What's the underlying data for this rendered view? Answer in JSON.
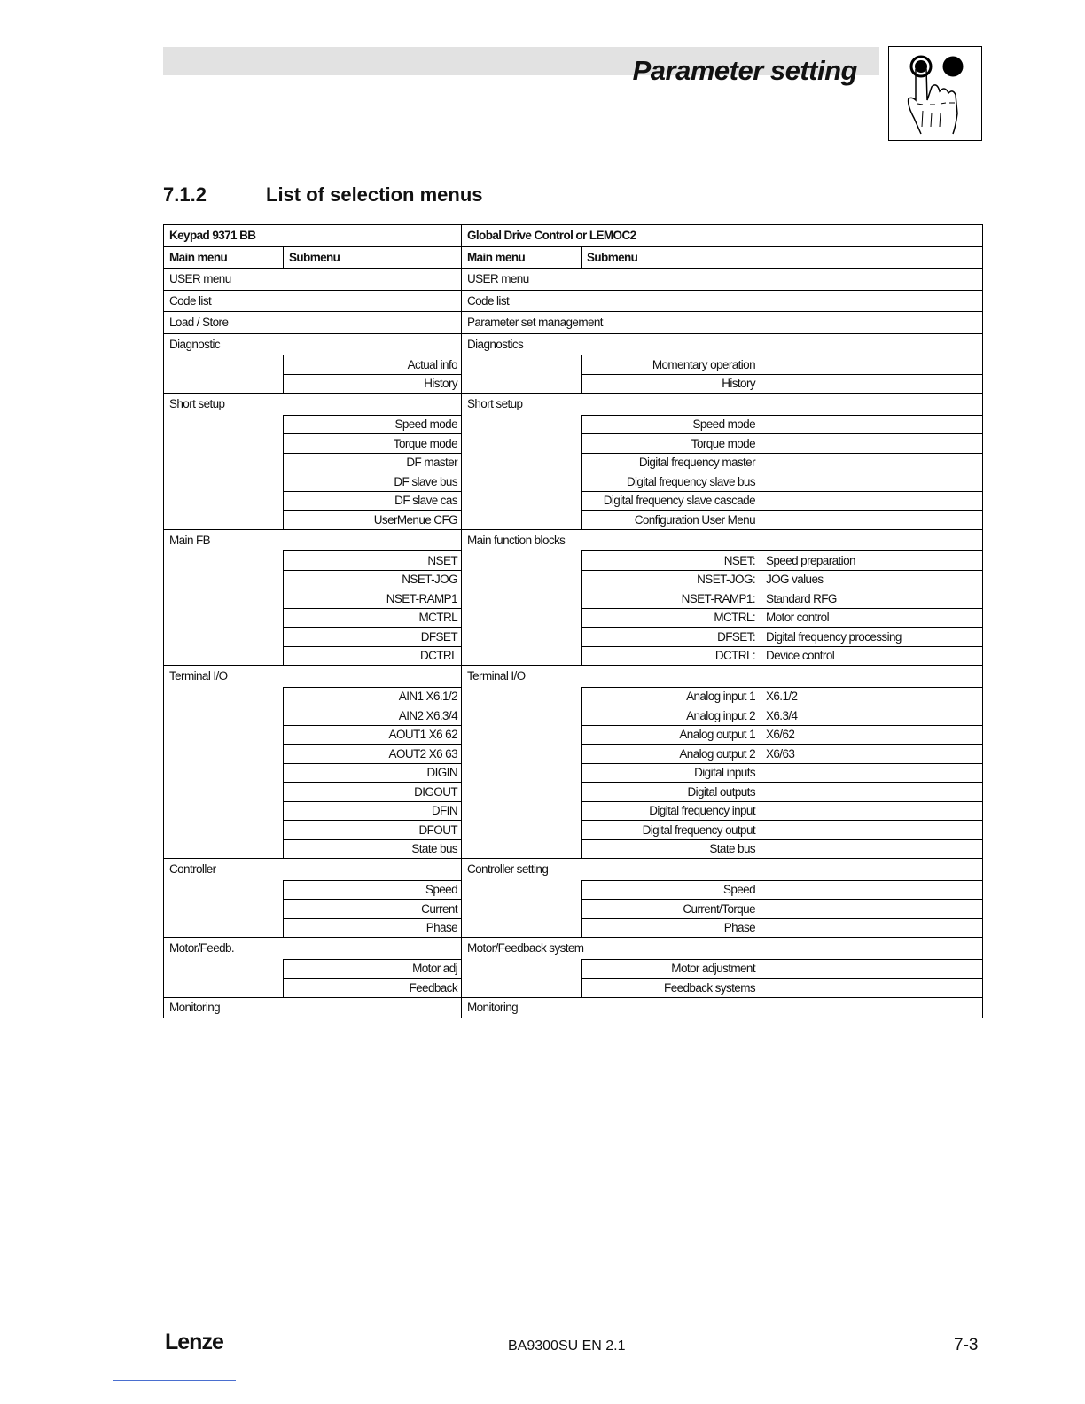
{
  "header": {
    "title": "Parameter setting",
    "icon": "hand-pressing-button-icon"
  },
  "section": {
    "number": "7.1.2",
    "title": "List of selection menus"
  },
  "table": {
    "left_title": "Keypad 9371 BB",
    "right_title": "Global Drive Control or LEMOC2",
    "col_main": "Main menu",
    "col_sub": "Submenu",
    "groups": [
      {
        "left": "USER menu",
        "right": "USER menu",
        "subs": []
      },
      {
        "left": "Code list",
        "right": "Code list",
        "subs": []
      },
      {
        "left": "Load / Store",
        "right": "Parameter set management",
        "subs": []
      },
      {
        "left": "Diagnostic",
        "right": "Diagnostics",
        "subs": [
          {
            "left": "Actual info",
            "right": "Momentary operation",
            "desc": ""
          },
          {
            "left": "History",
            "right": "History",
            "desc": ""
          }
        ]
      },
      {
        "left": "Short setup",
        "right": "Short setup",
        "subs": [
          {
            "left": "Speed mode",
            "right": "Speed mode",
            "desc": ""
          },
          {
            "left": "Torque mode",
            "right": "Torque mode",
            "desc": ""
          },
          {
            "left": "DF master",
            "right": "Digital frequency master",
            "desc": ""
          },
          {
            "left": "DF slave bus",
            "right": "Digital frequency slave bus",
            "desc": ""
          },
          {
            "left": "DF slave cas",
            "right": "Digital frequency slave cascade",
            "desc": ""
          },
          {
            "left": "UserMenue CFG",
            "right": "Configuration User Menu",
            "desc": ""
          }
        ]
      },
      {
        "left": "Main FB",
        "right": "Main function blocks",
        "subs": [
          {
            "left": "NSET",
            "right": "NSET:",
            "desc": "Speed preparation"
          },
          {
            "left": "NSET-JOG",
            "right": "NSET-JOG:",
            "desc": "JOG values"
          },
          {
            "left": "NSET-RAMP1",
            "right": "NSET-RAMP1:",
            "desc": "Standard RFG"
          },
          {
            "left": "MCTRL",
            "right": "MCTRL:",
            "desc": "Motor control"
          },
          {
            "left": "DFSET",
            "right": "DFSET:",
            "desc": "Digital frequency processing"
          },
          {
            "left": "DCTRL",
            "right": "DCTRL:",
            "desc": "Device control"
          }
        ]
      },
      {
        "left": "Terminal I/O",
        "right": "Terminal I/O",
        "subs": [
          {
            "left": "AIN1 X6.1/2",
            "right": "Analog input 1",
            "desc": "X6.1/2"
          },
          {
            "left": "AIN2 X6.3/4",
            "right": "Analog input 2",
            "desc": "X6.3/4"
          },
          {
            "left": "AOUT1 X6 62",
            "right": "Analog output 1",
            "desc": "X6/62"
          },
          {
            "left": "AOUT2 X6 63",
            "right": "Analog output 2",
            "desc": "X6/63"
          },
          {
            "left": "DIGIN",
            "right": "Digital inputs",
            "desc": ""
          },
          {
            "left": "DIGOUT",
            "right": "Digital outputs",
            "desc": ""
          },
          {
            "left": "DFIN",
            "right": "Digital frequency input",
            "desc": ""
          },
          {
            "left": "DFOUT",
            "right": "Digital frequency output",
            "desc": ""
          },
          {
            "left": "State bus",
            "right": "State bus",
            "desc": ""
          }
        ]
      },
      {
        "left": "Controller",
        "right": "Controller setting",
        "subs": [
          {
            "left": "Speed",
            "right": "Speed",
            "desc": ""
          },
          {
            "left": "Current",
            "right": "Current/Torque",
            "desc": ""
          },
          {
            "left": "Phase",
            "right": "Phase",
            "desc": ""
          }
        ]
      },
      {
        "left": "Motor/Feedb.",
        "right": "Motor/Feedback system",
        "subs": [
          {
            "left": "Motor adj",
            "right": "Motor adjustment",
            "desc": ""
          },
          {
            "left": "Feedback",
            "right": "Feedback systems",
            "desc": ""
          }
        ]
      },
      {
        "left": "Monitoring",
        "right": "Monitoring",
        "subs": []
      }
    ]
  },
  "footer": {
    "logo": "Lenze",
    "doc": "BA9300SU  EN  2.1",
    "page": "7-3"
  }
}
